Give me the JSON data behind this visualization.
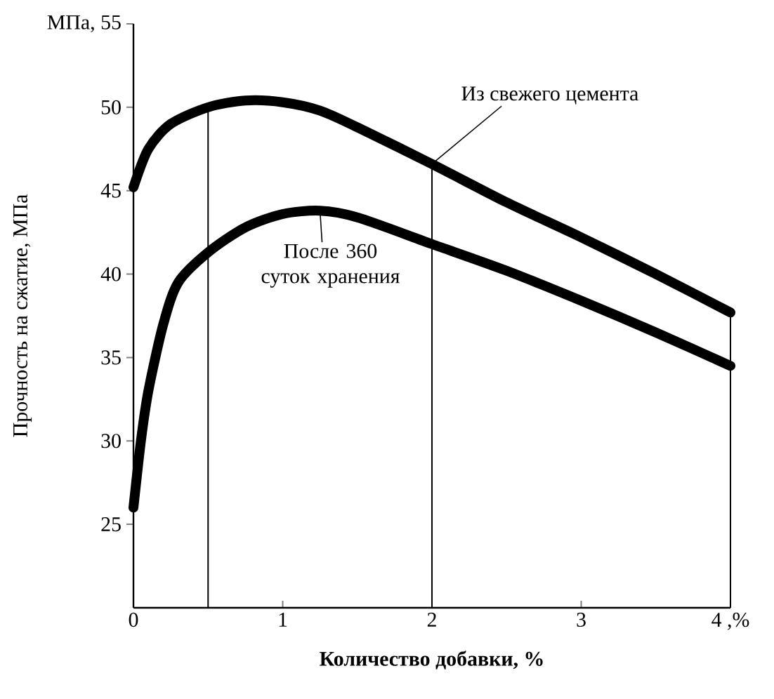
{
  "chart_data": {
    "type": "line",
    "xlabel": "Количество добавки, %",
    "ylabel": "Прочность на сжатие, МПа",
    "xlim": [
      0,
      4
    ],
    "ylim": [
      20,
      55
    ],
    "xticks": [
      0,
      1,
      2,
      3,
      {
        "value": 4,
        "label": "4 ,%"
      }
    ],
    "yticks": [
      25,
      30,
      35,
      40,
      45,
      50,
      {
        "value": 55,
        "label": "МПа, 55"
      }
    ],
    "series": [
      {
        "color": "#000000",
        "x": [
          0,
          0.1,
          0.25,
          0.5,
          0.75,
          1.0,
          1.25,
          1.5,
          2.0,
          2.5,
          3.0,
          3.5,
          4.0
        ],
        "values": [
          45.2,
          47.5,
          49,
          50,
          50.4,
          50.3,
          49.8,
          48.8,
          46.6,
          44.3,
          42.2,
          40,
          37.7
        ]
      },
      {
        "color": "#000000",
        "x": [
          0,
          0.05,
          0.1,
          0.2,
          0.3,
          0.5,
          0.75,
          1.0,
          1.25,
          1.5,
          2.0,
          2.5,
          3.0,
          3.5,
          4.0
        ],
        "values": [
          26,
          30,
          33,
          37,
          39.5,
          41.3,
          42.8,
          43.6,
          43.8,
          43.4,
          41.8,
          40.2,
          38.4,
          36.5,
          34.5
        ]
      }
    ],
    "ref_lines": [
      {
        "axis": "x",
        "value": 0.5,
        "color": "#000000"
      },
      {
        "axis": "x",
        "value": 2,
        "color": "#000000"
      },
      {
        "axis": "x",
        "value": 4,
        "color": "#000000"
      }
    ],
    "annotations": [
      {
        "text": "Из свежего цемента",
        "x": 2.0,
        "y": 46.6
      },
      {
        "text": "После 360 суток хранения",
        "x": 1.25,
        "y": 43.8
      }
    ],
    "marker": "none",
    "line_style": "solid"
  }
}
